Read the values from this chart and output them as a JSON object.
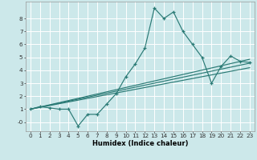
{
  "xlabel": "Humidex (Indice chaleur)",
  "bg_color": "#cce8ea",
  "grid_color": "#ffffff",
  "line_color": "#2a7a75",
  "xlim": [
    -0.5,
    23.5
  ],
  "ylim": [
    -0.7,
    9.3
  ],
  "xticks": [
    0,
    1,
    2,
    3,
    4,
    5,
    6,
    7,
    8,
    9,
    10,
    11,
    12,
    13,
    14,
    15,
    16,
    17,
    18,
    19,
    20,
    21,
    22,
    23
  ],
  "yticks": [
    0,
    1,
    2,
    3,
    4,
    5,
    6,
    7,
    8
  ],
  "ytick_labels": [
    "-0",
    "1",
    "2",
    "3",
    "4",
    "5",
    "6",
    "7",
    "8"
  ],
  "main_x": [
    0,
    1,
    2,
    3,
    4,
    5,
    6,
    7,
    8,
    9,
    10,
    11,
    12,
    13,
    14,
    15,
    16,
    17,
    18,
    19,
    20,
    21,
    22,
    23
  ],
  "main_y": [
    1.0,
    1.2,
    1.1,
    1.0,
    1.0,
    -0.3,
    0.6,
    0.6,
    1.4,
    2.2,
    3.5,
    4.5,
    5.7,
    8.8,
    8.0,
    8.5,
    7.0,
    6.0,
    5.0,
    3.0,
    4.3,
    5.1,
    4.7,
    4.6
  ],
  "line1_x": [
    0,
    23
  ],
  "line1_y": [
    1.0,
    4.55
  ],
  "line2_x": [
    0,
    23
  ],
  "line2_y": [
    1.0,
    4.2
  ],
  "line3_x": [
    0,
    23
  ],
  "line3_y": [
    1.0,
    4.85
  ],
  "xlabel_fontsize": 6.0,
  "tick_fontsize": 5.2
}
